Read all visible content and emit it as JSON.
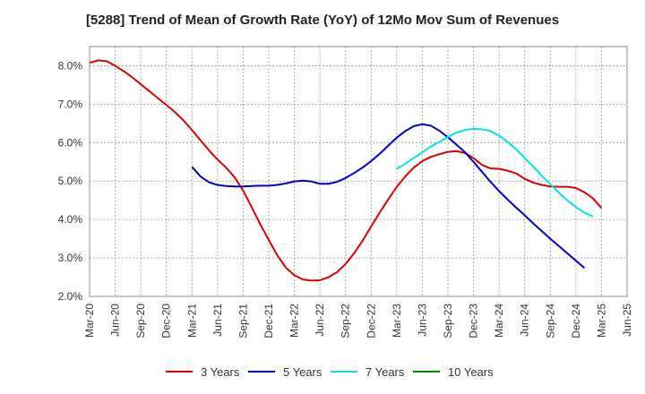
{
  "chart_data": {
    "type": "line",
    "title": "[5288]  Trend of Mean of Growth Rate (YoY) of 12Mo Mov Sum of Revenues",
    "xlabel": "",
    "ylabel": "",
    "ylim": [
      2.0,
      8.5
    ],
    "yticks": [
      2.0,
      3.0,
      4.0,
      5.0,
      6.0,
      7.0,
      8.0
    ],
    "ytick_labels": [
      "2.0%",
      "3.0%",
      "4.0%",
      "5.0%",
      "6.0%",
      "7.0%",
      "8.0%"
    ],
    "x_start": "Mar-20",
    "x_end": "Jun-25",
    "xtick_labels": [
      "Mar-20",
      "Jun-20",
      "Sep-20",
      "Dec-20",
      "Mar-21",
      "Jun-21",
      "Sep-21",
      "Dec-21",
      "Mar-22",
      "Jun-22",
      "Sep-22",
      "Dec-22",
      "Mar-23",
      "Jun-23",
      "Sep-23",
      "Dec-23",
      "Mar-24",
      "Jun-24",
      "Sep-24",
      "Dec-24",
      "Mar-25",
      "Jun-25"
    ],
    "grid": true,
    "legend_position": "bottom",
    "series": [
      {
        "name": "3 Years",
        "color": "#dd0000",
        "start_index": 0,
        "values": [
          8.08,
          8.14,
          8.12,
          8.0,
          7.86,
          7.7,
          7.52,
          7.34,
          7.16,
          6.98,
          6.8,
          6.58,
          6.33,
          6.06,
          5.8,
          5.56,
          5.35,
          5.1,
          4.75,
          4.32,
          3.88,
          3.47,
          3.07,
          2.75,
          2.55,
          2.44,
          2.41,
          2.42,
          2.5,
          2.63,
          2.84,
          3.12,
          3.45,
          3.82,
          4.18,
          4.52,
          4.85,
          5.12,
          5.35,
          5.52,
          5.63,
          5.7,
          5.76,
          5.78,
          5.73,
          5.6,
          5.42,
          5.33,
          5.32,
          5.27,
          5.2,
          5.06,
          4.96,
          4.9,
          4.86,
          4.85,
          4.85,
          4.82,
          4.71,
          4.55,
          4.3
        ]
      },
      {
        "name": "5 Years",
        "color": "#0000cc",
        "start_index": 12,
        "values": [
          5.37,
          5.12,
          4.97,
          4.9,
          4.87,
          4.86,
          4.86,
          4.87,
          4.88,
          4.88,
          4.9,
          4.94,
          4.99,
          5.01,
          4.99,
          4.93,
          4.93,
          4.98,
          5.08,
          5.21,
          5.35,
          5.52,
          5.71,
          5.92,
          6.13,
          6.3,
          6.43,
          6.48,
          6.44,
          6.31,
          6.14,
          5.95,
          5.75,
          5.5,
          5.24,
          4.98,
          4.74,
          4.52,
          4.31,
          4.11,
          3.9,
          3.7,
          3.5,
          3.31,
          3.12,
          2.93,
          2.74
        ]
      },
      {
        "name": "7 Years",
        "color": "#00e5e5",
        "start_index": 36,
        "values": [
          5.32,
          5.45,
          5.6,
          5.75,
          5.9,
          6.02,
          6.15,
          6.26,
          6.33,
          6.36,
          6.35,
          6.3,
          6.18,
          6.02,
          5.83,
          5.6,
          5.38,
          5.14,
          4.92,
          4.7,
          4.5,
          4.32,
          4.18,
          4.08
        ]
      },
      {
        "name": "10 Years",
        "color": "#008800",
        "start_index": 0,
        "values": []
      }
    ]
  }
}
